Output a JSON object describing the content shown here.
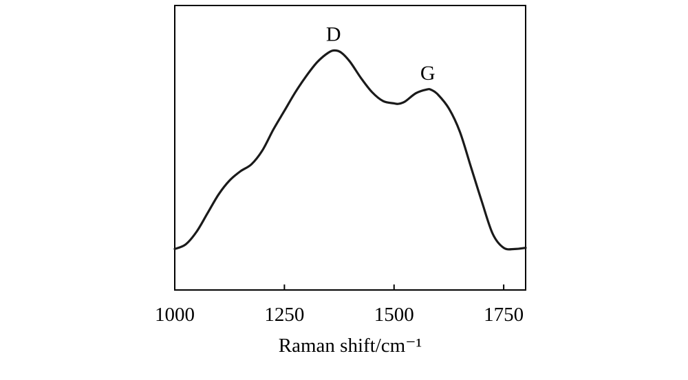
{
  "chart_data": {
    "type": "line",
    "title": "",
    "xlabel": "Raman shift/cm⁻¹",
    "ylabel": "",
    "xlim": [
      1000,
      1800
    ],
    "ylim": [
      0,
      1.0
    ],
    "x_ticks": [
      1000,
      1250,
      1500,
      1750
    ],
    "x_tick_labels": [
      "1000",
      "1250",
      "1500",
      "1750"
    ],
    "y_ticks_shown": false,
    "grid": false,
    "legend": "none",
    "line_color": "#1a1a1a",
    "series": [
      {
        "x": [
          1000,
          1025,
          1050,
          1075,
          1100,
          1125,
          1150,
          1175,
          1200,
          1225,
          1250,
          1275,
          1300,
          1325,
          1350,
          1365,
          1380,
          1400,
          1425,
          1450,
          1475,
          1500,
          1510,
          1525,
          1550,
          1575,
          1585,
          1600,
          1625,
          1650,
          1675,
          1700,
          1725,
          1750,
          1775,
          1800
        ],
        "y": [
          0.175,
          0.195,
          0.25,
          0.33,
          0.41,
          0.47,
          0.51,
          0.54,
          0.6,
          0.69,
          0.77,
          0.85,
          0.92,
          0.98,
          1.02,
          1.03,
          1.02,
          0.98,
          0.91,
          0.85,
          0.812,
          0.802,
          0.8,
          0.81,
          0.846,
          0.862,
          0.86,
          0.84,
          0.78,
          0.68,
          0.53,
          0.38,
          0.24,
          0.18,
          0.175,
          0.18
        ]
      }
    ],
    "annotations": [
      {
        "text": "D",
        "x": 1365,
        "y": 1.03
      },
      {
        "text": "G",
        "x": 1580,
        "y": 0.862
      }
    ]
  }
}
